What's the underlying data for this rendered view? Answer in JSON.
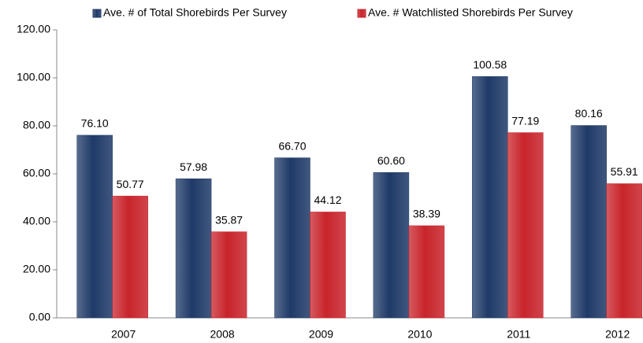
{
  "chart_data": {
    "type": "bar",
    "categories": [
      "2007",
      "2008",
      "2009",
      "2010",
      "2011",
      "2012"
    ],
    "series": [
      {
        "name": "Ave. # of Total Shorebirds Per Survey",
        "color": "#1f3a68",
        "values": [
          76.1,
          57.98,
          66.7,
          60.6,
          100.58,
          80.16
        ],
        "value_labels": [
          "76.10",
          "57.98",
          "66.70",
          "60.60",
          "100.58",
          "80.16"
        ]
      },
      {
        "name": "Ave. # Watchlisted Shorebirds Per Survey",
        "color": "#c8242b",
        "values": [
          50.77,
          35.87,
          44.12,
          38.39,
          77.19,
          55.91
        ],
        "value_labels": [
          "50.77",
          "35.87",
          "44.12",
          "38.39",
          "77.19",
          "55.91"
        ]
      }
    ],
    "ylim": [
      0,
      120
    ],
    "yticks": [
      {
        "value": 0,
        "label": "0.00"
      },
      {
        "value": 20,
        "label": "20.00"
      },
      {
        "value": 40,
        "label": "40.00"
      },
      {
        "value": 60,
        "label": "60.00"
      },
      {
        "value": 80,
        "label": "80.00"
      },
      {
        "value": 100,
        "label": "100.00"
      },
      {
        "value": 120,
        "label": "120.00"
      }
    ],
    "legend": "top"
  }
}
